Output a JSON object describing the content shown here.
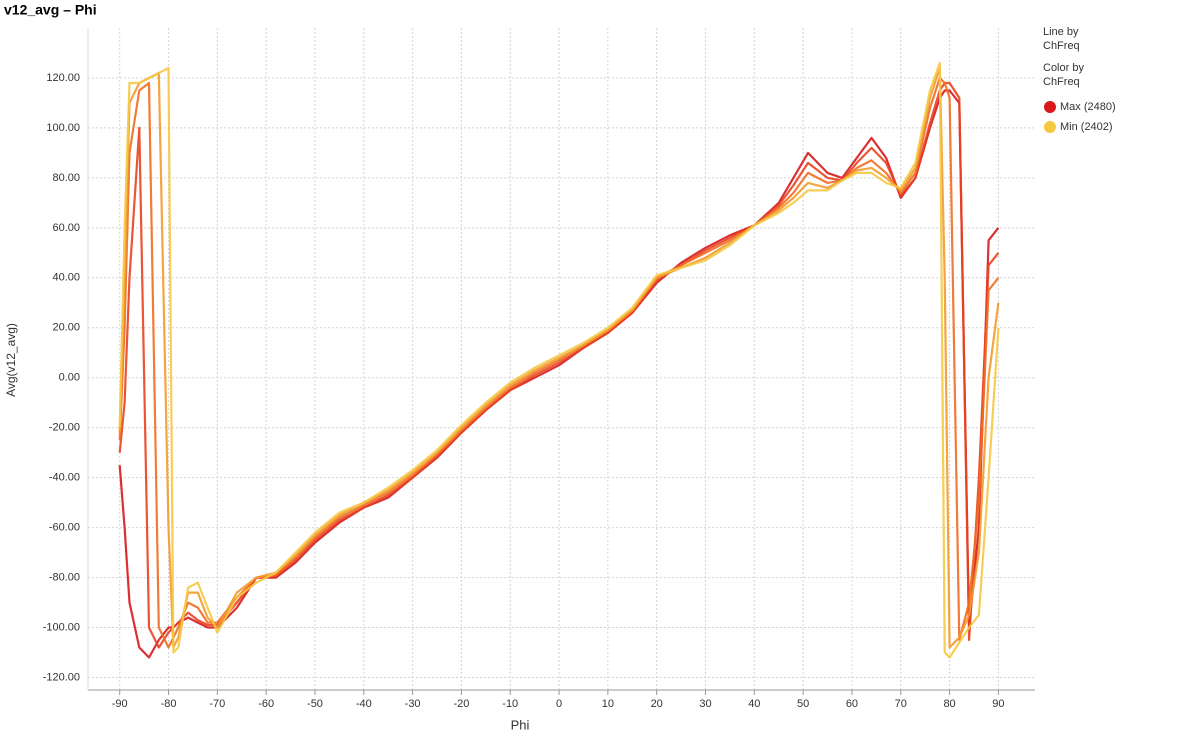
{
  "chart_data": {
    "type": "line",
    "title": "v12_avg – Phi",
    "x_label": "Phi",
    "y_label": "Avg(v12_avg)",
    "xlim": [
      -96.5,
      97.5
    ],
    "ylim": [
      -125,
      140
    ],
    "xticks": [
      -90,
      -80,
      -70,
      -60,
      -50,
      -40,
      -30,
      -20,
      -10,
      0,
      10,
      20,
      30,
      40,
      50,
      60,
      70,
      80,
      90
    ],
    "yticks": [
      {
        "value": -120,
        "label": "-120.00"
      },
      {
        "value": -100,
        "label": "-100.00"
      },
      {
        "value": -80,
        "label": "-80.00"
      },
      {
        "value": -60,
        "label": "-60.00"
      },
      {
        "value": -40,
        "label": "-40.00"
      },
      {
        "value": -20,
        "label": "-20.00"
      },
      {
        "value": 0,
        "label": "0.00"
      },
      {
        "value": 20,
        "label": "20.00"
      },
      {
        "value": 40,
        "label": "40.00"
      },
      {
        "value": 60,
        "label": "60.00"
      },
      {
        "value": 80,
        "label": "80.00"
      },
      {
        "value": 100,
        "label": "100.00"
      },
      {
        "value": 120,
        "label": "120.00"
      }
    ],
    "grid": true,
    "legend": {
      "line_by_title": "Line by",
      "line_by": "ChFreq",
      "color_by_title": "Color by",
      "color_by": "ChFreq",
      "max_label": "Max (2480)",
      "max_color": "#d7191c",
      "min_label": "Min (2402)",
      "min_color": "#f5c842"
    },
    "x": [
      -90,
      -89,
      -88,
      -86,
      -84,
      -82,
      -80,
      -79,
      -78,
      -76,
      -74,
      -72,
      -70,
      -66,
      -62,
      -58,
      -54,
      -50,
      -45,
      -40,
      -35,
      -30,
      -25,
      -20,
      -15,
      -10,
      -5,
      0,
      5,
      10,
      15,
      20,
      25,
      30,
      35,
      40,
      45,
      48,
      51,
      55,
      58,
      61,
      64,
      67,
      70,
      73,
      76,
      78,
      79,
      80,
      82,
      84,
      86,
      88,
      90
    ],
    "series": [
      {
        "color": "#d7191c",
        "values": [
          -35,
          -60,
          -90,
          -108,
          -112,
          -105,
          -100,
          -100,
          -98,
          -96,
          -98,
          -100,
          -100,
          -92,
          -80,
          -80,
          -74,
          -66,
          -58,
          -52,
          -48,
          -40,
          -32,
          -22,
          -13,
          -5,
          0,
          5,
          12,
          18,
          26,
          38,
          46,
          52,
          57,
          61,
          70,
          80,
          90,
          82,
          80,
          88,
          96,
          88,
          72,
          80,
          100,
          112,
          115,
          115,
          110,
          -100,
          -60,
          55,
          60
        ]
      },
      {
        "color": "#e8421f",
        "values": [
          -30,
          -10,
          40,
          100,
          -100,
          -108,
          -102,
          -100,
          -98,
          -94,
          -97,
          -99,
          -99,
          -90,
          -80,
          -79,
          -73,
          -65,
          -57,
          -52,
          -47,
          -40,
          -31,
          -22,
          -13,
          -5,
          1,
          6,
          12,
          18,
          26,
          39,
          45,
          51,
          56,
          61,
          69,
          77,
          86,
          80,
          79,
          86,
          92,
          86,
          73,
          80,
          102,
          115,
          118,
          118,
          112,
          -105,
          -40,
          45,
          50
        ]
      },
      {
        "color": "#ef6d22",
        "values": [
          -25,
          20,
          90,
          115,
          118,
          -100,
          -108,
          -104,
          -100,
          -90,
          -92,
          -98,
          -98,
          -88,
          -80,
          -79,
          -72,
          -64,
          -56,
          -51,
          -46,
          -39,
          -31,
          -21,
          -12,
          -4,
          2,
          7,
          13,
          19,
          27,
          40,
          45,
          50,
          55,
          61,
          68,
          74,
          82,
          78,
          79,
          84,
          87,
          82,
          74,
          82,
          108,
          120,
          118,
          112,
          -105,
          -90,
          -50,
          35,
          40
        ]
      },
      {
        "color": "#f39a2c",
        "values": [
          -22,
          40,
          110,
          118,
          120,
          122,
          -60,
          -108,
          -104,
          -86,
          -86,
          -96,
          -100,
          -86,
          -80,
          -78,
          -71,
          -63,
          -55,
          -50,
          -45,
          -38,
          -30,
          -20,
          -11,
          -3,
          3,
          8,
          13,
          19,
          27,
          40,
          44,
          48,
          54,
          61,
          67,
          72,
          78,
          76,
          79,
          83,
          84,
          80,
          75,
          84,
          112,
          124,
          40,
          -108,
          -104,
          -95,
          -70,
          0,
          30
        ]
      },
      {
        "color": "#f5c842",
        "values": [
          -20,
          60,
          118,
          118,
          120,
          122,
          124,
          -110,
          -108,
          -84,
          -82,
          -92,
          -102,
          -88,
          -82,
          -78,
          -70,
          -62,
          -54,
          -50,
          -44,
          -37,
          -29,
          -19,
          -10,
          -2,
          4,
          9,
          14,
          20,
          28,
          41,
          44,
          47,
          53,
          61,
          66,
          70,
          75,
          75,
          79,
          82,
          82,
          78,
          76,
          86,
          115,
          126,
          -110,
          -112,
          -106,
          -100,
          -95,
          -40,
          20
        ]
      }
    ]
  }
}
